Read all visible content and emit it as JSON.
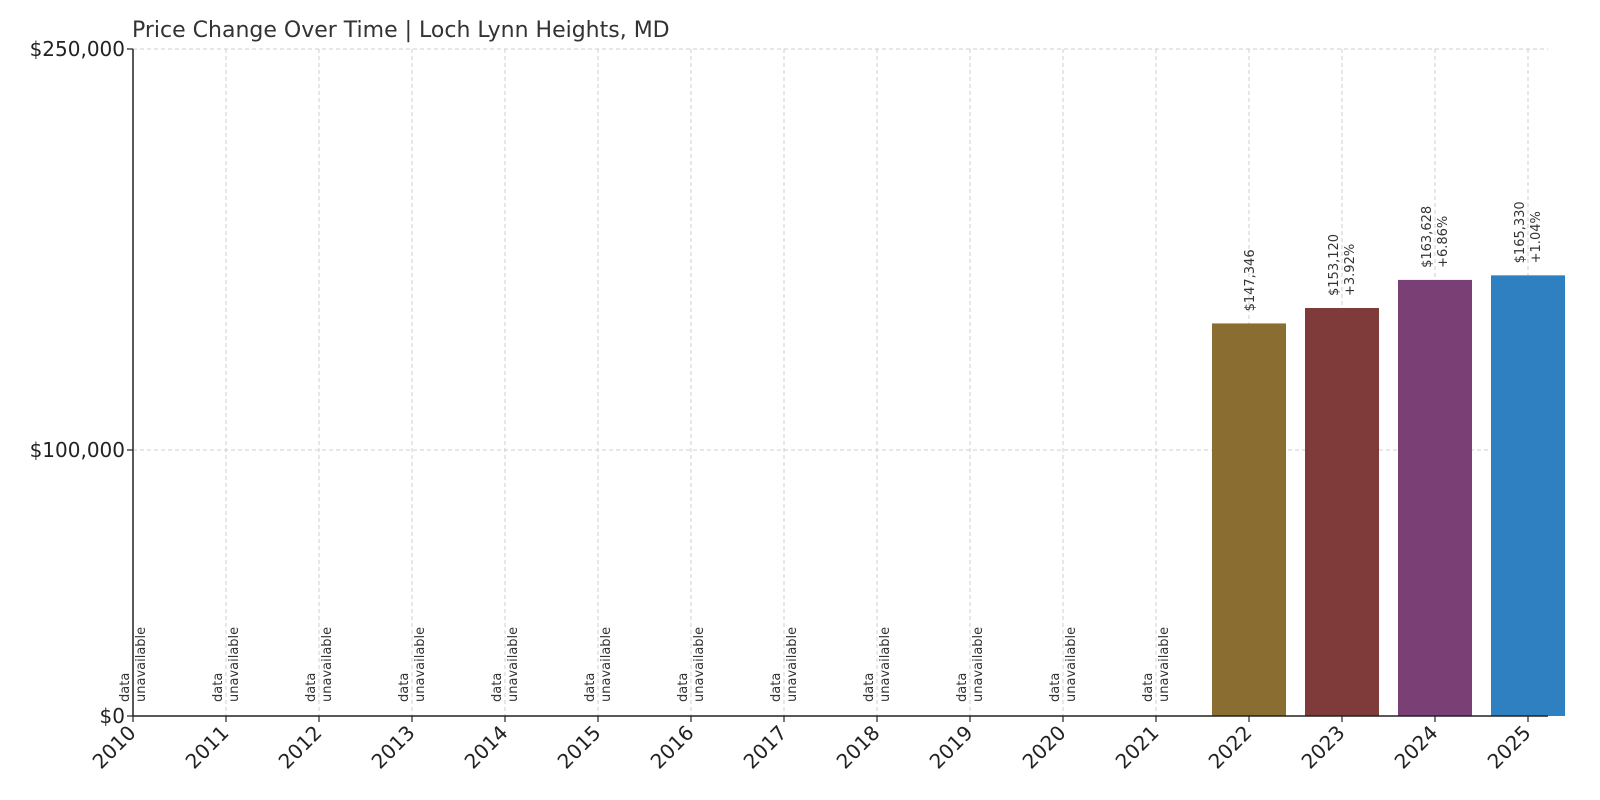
{
  "chart_data": {
    "type": "bar",
    "title": "Price Change Over Time | Loch Lynn Heights, MD",
    "xlabel": "",
    "ylabel": "",
    "categories": [
      "2010",
      "2011",
      "2012",
      "2013",
      "2014",
      "2015",
      "2016",
      "2017",
      "2018",
      "2019",
      "2020",
      "2021",
      "2022",
      "2023",
      "2024",
      "2025"
    ],
    "values": [
      null,
      null,
      null,
      null,
      null,
      null,
      null,
      null,
      null,
      null,
      null,
      null,
      147346,
      153120,
      163628,
      165330
    ],
    "value_labels": [
      "",
      "",
      "",
      "",
      "",
      "",
      "",
      "",
      "",
      "",
      "",
      "",
      "$147,346",
      "$153,120",
      "$163,628",
      "$165,330"
    ],
    "change_labels": [
      "",
      "",
      "",
      "",
      "",
      "",
      "",
      "",
      "",
      "",
      "",
      "",
      "",
      "+3.92%",
      "+6.86%",
      "+1.04%"
    ],
    "unavailable_text": [
      "data",
      "unavailable"
    ],
    "bar_colors": [
      "#8a6d30",
      "#8a6d30",
      "#8a6d30",
      "#8a6d30",
      "#8a6d30",
      "#8a6d30",
      "#8a6d30",
      "#8a6d30",
      "#8a6d30",
      "#8a6d30",
      "#8a6d30",
      "#8a6d30",
      "#8a6d30",
      "#7f3a3a",
      "#7a3f74",
      "#2e80c0"
    ],
    "ylim": [
      0,
      250000
    ],
    "yticks": [
      0,
      100000,
      250000
    ],
    "ytick_labels": [
      "$0",
      "$100,000",
      "$250,000"
    ],
    "grid": true,
    "legend": "none"
  }
}
